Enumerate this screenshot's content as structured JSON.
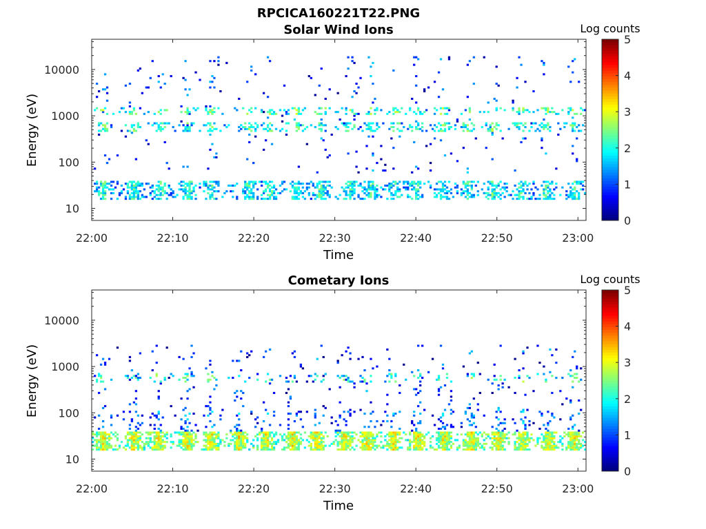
{
  "figure": {
    "title": "RPCICA160221T22.PNG"
  },
  "chart_data": [
    {
      "type": "heatmap",
      "title": "Solar Wind Ions",
      "xlabel": "Time",
      "ylabel": "Energy (eV)",
      "x_ticks": [
        "22:00",
        "22:10",
        "22:20",
        "22:30",
        "22:40",
        "22:50",
        "23:00"
      ],
      "x_range_minutes": [
        0,
        61
      ],
      "y_scale": "log",
      "y_ticks": [
        10,
        100,
        1000,
        10000
      ],
      "y_tick_labels": [
        "10",
        "100",
        "1000",
        "10000"
      ],
      "y_range": [
        5.5,
        45000
      ],
      "colorbar": {
        "label": "Log counts",
        "range": [
          0,
          5
        ],
        "ticks": [
          "0",
          "1",
          "2",
          "3",
          "4",
          "5"
        ],
        "colormap": "jet"
      },
      "colors": {
        "low": "#00008f",
        "high": "#800000"
      },
      "bands": [
        {
          "energy_range": [
            15,
            40
          ],
          "level": 1.3,
          "density": 0.55
        },
        {
          "energy_range": [
            450,
            750
          ],
          "level": 1.5,
          "density": 0.35
        },
        {
          "energy_range": [
            1100,
            1500
          ],
          "level": 1.7,
          "density": 0.3
        },
        {
          "energy_range": [
            60,
            20000
          ],
          "level": 0.4,
          "density": 0.03
        }
      ],
      "bursts_minutes": [
        1.5,
        5.2,
        8.5,
        12,
        14.8,
        19.5,
        22,
        25.2,
        28.3,
        31.8,
        34.5,
        37.5,
        40,
        43.2,
        46.5,
        49.5,
        53,
        56,
        59.5
      ]
    },
    {
      "type": "heatmap",
      "title": "Cometary Ions",
      "xlabel": "Time",
      "ylabel": "Energy (eV)",
      "x_ticks": [
        "22:00",
        "22:10",
        "22:20",
        "22:30",
        "22:40",
        "22:50",
        "23:00"
      ],
      "x_range_minutes": [
        0,
        61
      ],
      "y_scale": "log",
      "y_ticks": [
        10,
        100,
        1000,
        10000
      ],
      "y_tick_labels": [
        "10",
        "100",
        "1000",
        "10000"
      ],
      "y_range": [
        5.5,
        45000
      ],
      "colorbar": {
        "label": "Log counts",
        "range": [
          0,
          5
        ],
        "ticks": [
          "0",
          "1",
          "2",
          "3",
          "4",
          "5"
        ],
        "colormap": "jet"
      },
      "colors": {
        "low": "#00008f",
        "high": "#800000"
      },
      "bands": [
        {
          "energy_range": [
            15,
            40
          ],
          "level": 2.2,
          "density": 0.85
        },
        {
          "energy_range": [
            40,
            120
          ],
          "level": 0.6,
          "density": 0.15
        },
        {
          "energy_range": [
            450,
            700
          ],
          "level": 1.5,
          "density": 0.18
        },
        {
          "energy_range": [
            120,
            3000
          ],
          "level": 0.3,
          "density": 0.04
        }
      ],
      "bursts_minutes": [
        1.5,
        5.2,
        8.2,
        11.8,
        14.8,
        18.2,
        21.5,
        24.8,
        27.8,
        31.2,
        34,
        37.2,
        40.2,
        43.5,
        46.8,
        50.2,
        53.2,
        56.5,
        59.5
      ]
    }
  ]
}
